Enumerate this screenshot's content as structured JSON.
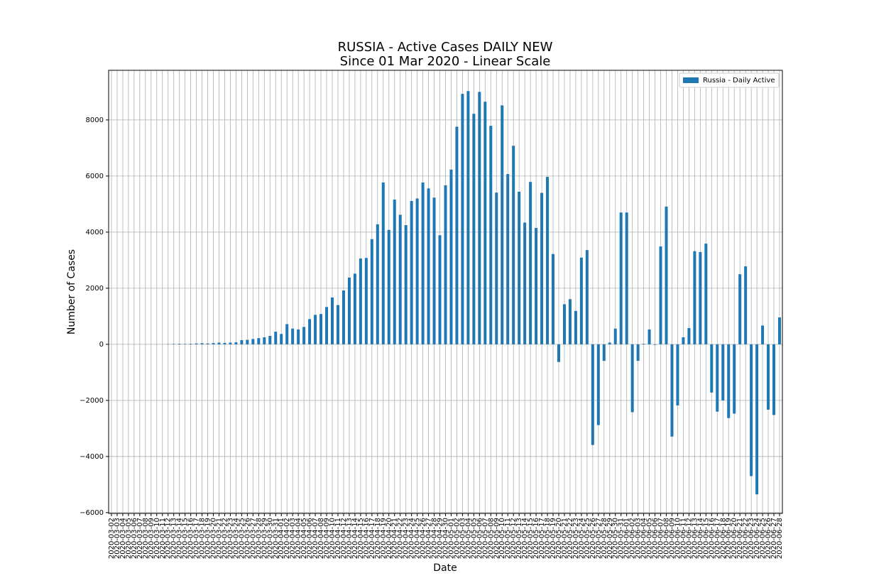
{
  "chart_data": {
    "type": "bar",
    "title": "RUSSIA - Active Cases DAILY NEW",
    "subtitle": "Since 01 Mar 2020 - Linear Scale",
    "xlabel": "Date",
    "ylabel": "Number of Cases",
    "categories": [
      "2020-03-02",
      "2020-03-03",
      "2020-03-04",
      "2020-03-05",
      "2020-03-06",
      "2020-03-07",
      "2020-03-08",
      "2020-03-09",
      "2020-03-10",
      "2020-03-11",
      "2020-03-12",
      "2020-03-13",
      "2020-03-14",
      "2020-03-15",
      "2020-03-16",
      "2020-03-17",
      "2020-03-18",
      "2020-03-19",
      "2020-03-20",
      "2020-03-21",
      "2020-03-22",
      "2020-03-23",
      "2020-03-24",
      "2020-03-25",
      "2020-03-26",
      "2020-03-27",
      "2020-03-28",
      "2020-03-29",
      "2020-03-30",
      "2020-03-31",
      "2020-04-01",
      "2020-04-02",
      "2020-04-03",
      "2020-04-04",
      "2020-04-05",
      "2020-04-06",
      "2020-04-07",
      "2020-04-08",
      "2020-04-09",
      "2020-04-10",
      "2020-04-11",
      "2020-04-12",
      "2020-04-13",
      "2020-04-14",
      "2020-04-15",
      "2020-04-16",
      "2020-04-17",
      "2020-04-18",
      "2020-04-19",
      "2020-04-20",
      "2020-04-21",
      "2020-04-22",
      "2020-04-23",
      "2020-04-24",
      "2020-04-25",
      "2020-04-26",
      "2020-04-27",
      "2020-04-28",
      "2020-04-29",
      "2020-04-30",
      "2020-05-01",
      "2020-05-02",
      "2020-05-03",
      "2020-05-04",
      "2020-05-05",
      "2020-05-06",
      "2020-05-07",
      "2020-05-08",
      "2020-05-09",
      "2020-05-10",
      "2020-05-11",
      "2020-05-12",
      "2020-05-13",
      "2020-05-14",
      "2020-05-15",
      "2020-05-16",
      "2020-05-17",
      "2020-05-18",
      "2020-05-19",
      "2020-05-20",
      "2020-05-21",
      "2020-05-22",
      "2020-05-23",
      "2020-05-24",
      "2020-05-25",
      "2020-05-26",
      "2020-05-27",
      "2020-05-28",
      "2020-05-29",
      "2020-05-30",
      "2020-05-31",
      "2020-06-01",
      "2020-06-02",
      "2020-06-03",
      "2020-06-04",
      "2020-06-05",
      "2020-06-06",
      "2020-06-07",
      "2020-06-08",
      "2020-06-09",
      "2020-06-10",
      "2020-06-11",
      "2020-06-12",
      "2020-06-13",
      "2020-06-14",
      "2020-06-15",
      "2020-06-16",
      "2020-06-17",
      "2020-06-18",
      "2020-06-19",
      "2020-06-20",
      "2020-06-21",
      "2020-06-22",
      "2020-06-23",
      "2020-06-24",
      "2020-06-25",
      "2020-06-26",
      "2020-06-27",
      "2020-06-28"
    ],
    "series": [
      {
        "name": "Russia - Daily Active",
        "color": "#1f77b4",
        "values": [
          0,
          0,
          0,
          0,
          3,
          0,
          2,
          0,
          3,
          0,
          10,
          15,
          20,
          15,
          20,
          30,
          40,
          30,
          45,
          60,
          50,
          60,
          70,
          150,
          160,
          190,
          220,
          250,
          300,
          450,
          370,
          720,
          560,
          530,
          620,
          900,
          1050,
          1080,
          1330,
          1670,
          1400,
          1920,
          2380,
          2520,
          3060,
          3080,
          3750,
          4280,
          5770,
          4080,
          5160,
          4620,
          4250,
          5110,
          5200,
          5770,
          5560,
          5230,
          3890,
          5670,
          6230,
          7760,
          8930,
          9030,
          8220,
          9000,
          8650,
          7790,
          5410,
          8520,
          6070,
          7080,
          5440,
          4340,
          5790,
          4150,
          5400,
          5970,
          3220,
          -630,
          1430,
          1610,
          1190,
          3090,
          3360,
          -3590,
          -2880,
          -590,
          60,
          560,
          4700,
          4700,
          -2420,
          -590,
          20,
          530,
          -20,
          3490,
          4910,
          -3290,
          -2180,
          250,
          580,
          3320,
          3290,
          3590,
          -1720,
          -2400,
          -2000,
          -2630,
          -2470,
          2500,
          2780,
          -4700,
          -5350,
          670,
          -2330,
          -2520,
          960
        ]
      }
    ],
    "ylim": [
      -6030,
      9770
    ],
    "yticks": [
      {
        "value": -6000,
        "label": "−6000"
      },
      {
        "value": -4000,
        "label": "−4000"
      },
      {
        "value": -2000,
        "label": "−2000"
      },
      0,
      2000,
      4000,
      6000,
      8000
    ],
    "grid": true,
    "legend": "upper right"
  }
}
